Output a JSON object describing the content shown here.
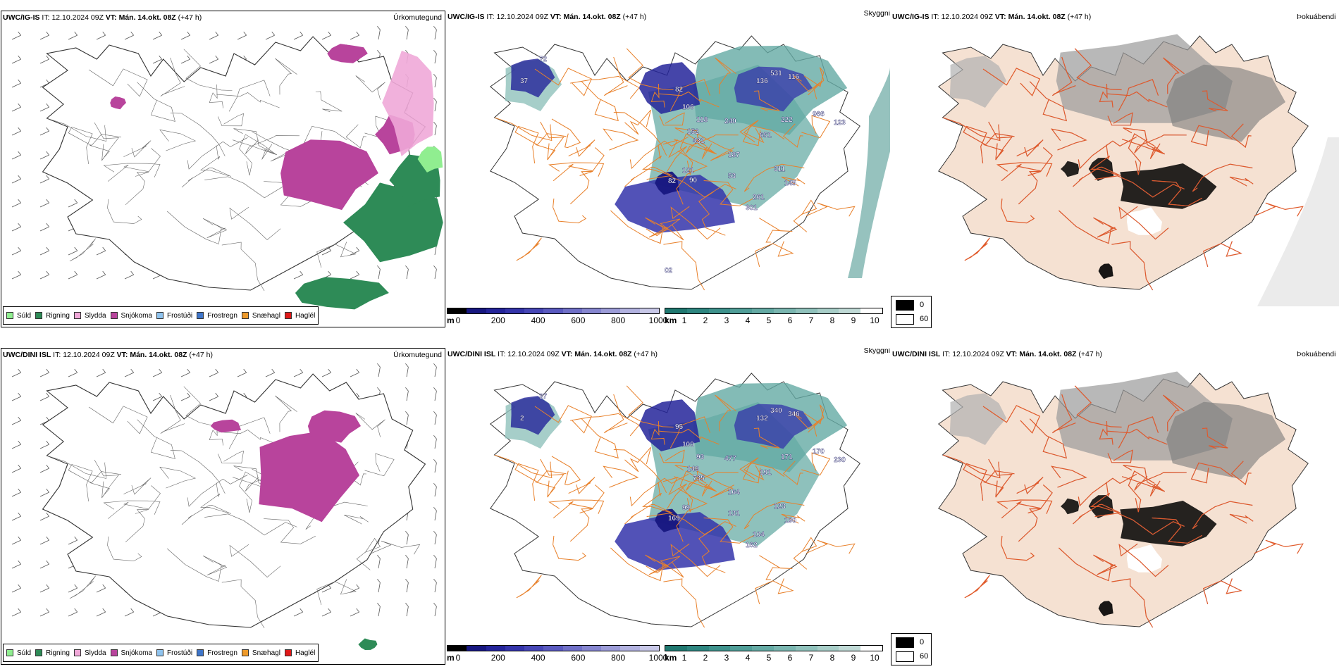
{
  "rows": [
    {
      "model": "UWC/IG-IS",
      "it_label": "IT:",
      "it_value": "12.10.2024 09Z",
      "vt_label": "VT:",
      "vt_value": "Mán. 14.okt. 08Z",
      "lead": "(+47 h)",
      "precip_title": "Úrkomutegund",
      "cloud_title": "Skyggni",
      "fog_title": "Þokuábendi",
      "cloud_labels": [
        "72",
        "37",
        "82",
        "106",
        "118",
        "152",
        "240",
        "431",
        "187",
        "121",
        "53",
        "261",
        "301",
        "311",
        "145",
        "531",
        "116",
        "136",
        "222",
        "651",
        "966",
        "123",
        "82",
        "90",
        "02"
      ]
    },
    {
      "model": "UWC/DINI ISL",
      "it_label": "IT:",
      "it_value": "12.10.2024 09Z",
      "vt_label": "VT:",
      "vt_value": "Mán. 14.okt. 08Z",
      "lead": "(+47 h)",
      "precip_title": "Úrkomutegund",
      "cloud_title": "Skyggni",
      "fog_title": "Þokuábendi",
      "cloud_labels": [
        "37",
        "2",
        "95",
        "100",
        "93",
        "149",
        "477",
        "735",
        "164",
        "99",
        "131",
        "104",
        "162",
        "123",
        "190",
        "340",
        "346",
        "132",
        "171",
        "191",
        "170",
        "230",
        "169"
      ]
    }
  ],
  "precip_legend": [
    {
      "label": "Súld",
      "color": "#90ee90"
    },
    {
      "label": "Rigning",
      "color": "#2e8b57"
    },
    {
      "label": "Slydda",
      "color": "#f0a8d8"
    },
    {
      "label": "Snjókoma",
      "color": "#b8449c"
    },
    {
      "label": "Frostúði",
      "color": "#8fc3ee"
    },
    {
      "label": "Frostregn",
      "color": "#3e75c9"
    },
    {
      "label": "Snæhagl",
      "color": "#ee9a2a"
    },
    {
      "label": "Haglél",
      "color": "#e01818"
    }
  ],
  "ceiling_bar": {
    "unit": "m",
    "ticks": [
      "0",
      "200",
      "400",
      "600",
      "800",
      "1000"
    ],
    "colors": [
      "#000000",
      "#171780",
      "#24249a",
      "#3434aa",
      "#4646b6",
      "#5a5ac0",
      "#7070c8",
      "#8686d0",
      "#9c9cd8",
      "#b2b2e0",
      "#c8c8e8"
    ]
  },
  "visibility_bar": {
    "unit": "km",
    "ticks": [
      "1",
      "2",
      "3",
      "4",
      "5",
      "6",
      "7",
      "8",
      "9",
      "10"
    ],
    "colors": [
      "#207870",
      "#2e8680",
      "#3e928c",
      "#509e98",
      "#64aaa4",
      "#7ab6b0",
      "#90c2bc",
      "#a8cec8",
      "#c0dad6",
      "#ffffff"
    ]
  },
  "fog_legend": {
    "items": [
      {
        "label": "0",
        "color": "#000000"
      },
      {
        "label": "60",
        "color": "#ffffff"
      }
    ]
  },
  "colors": {
    "land_fog": "#f5e1d2",
    "roads": "#e8802a",
    "rivers": "#7c8cf0",
    "coast": "#333333"
  }
}
